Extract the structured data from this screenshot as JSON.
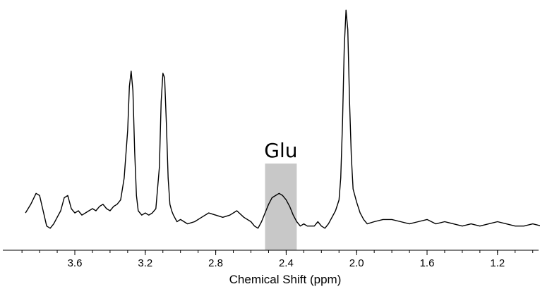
{
  "chart_data": {
    "type": "line",
    "title": "",
    "xlabel": "Chemical Shift (ppm)",
    "ylabel": "",
    "x_reversed": true,
    "xlim": [
      3.9,
      0.9
    ],
    "x_ticks": [
      3.6,
      3.2,
      2.8,
      2.4,
      2.0,
      1.6,
      1.2
    ],
    "x_tick_labels": [
      "3.6",
      "3.2",
      "2.8",
      "2.4",
      "2.0",
      "1.6",
      "1.2"
    ],
    "ylim": [
      -0.05,
      1.0
    ],
    "grid": false,
    "line_color": "#000000",
    "highlight": {
      "label": "Glu",
      "x_start": 2.52,
      "x_end": 2.34,
      "color": "#c8c8c8"
    },
    "series": [
      {
        "name": "",
        "x": [
          3.88,
          3.85,
          3.82,
          3.8,
          3.78,
          3.76,
          3.74,
          3.72,
          3.7,
          3.68,
          3.66,
          3.64,
          3.62,
          3.6,
          3.58,
          3.56,
          3.54,
          3.52,
          3.5,
          3.48,
          3.46,
          3.44,
          3.42,
          3.4,
          3.38,
          3.36,
          3.34,
          3.32,
          3.3,
          3.29,
          3.28,
          3.27,
          3.26,
          3.25,
          3.24,
          3.22,
          3.2,
          3.18,
          3.16,
          3.14,
          3.12,
          3.11,
          3.1,
          3.09,
          3.08,
          3.07,
          3.06,
          3.05,
          3.04,
          3.02,
          3.0,
          2.96,
          2.92,
          2.88,
          2.84,
          2.8,
          2.76,
          2.72,
          2.68,
          2.64,
          2.6,
          2.58,
          2.56,
          2.54,
          2.52,
          2.5,
          2.48,
          2.46,
          2.44,
          2.42,
          2.4,
          2.38,
          2.36,
          2.34,
          2.32,
          2.3,
          2.28,
          2.26,
          2.24,
          2.22,
          2.2,
          2.18,
          2.16,
          2.14,
          2.12,
          2.1,
          2.09,
          2.08,
          2.07,
          2.06,
          2.05,
          2.04,
          2.03,
          2.02,
          2.0,
          1.98,
          1.96,
          1.94,
          1.9,
          1.85,
          1.8,
          1.75,
          1.7,
          1.65,
          1.6,
          1.55,
          1.5,
          1.45,
          1.4,
          1.35,
          1.3,
          1.25,
          1.2,
          1.15,
          1.1,
          1.05,
          1.0,
          0.95,
          0.92
        ],
        "y": [
          0.04,
          0.08,
          0.13,
          0.12,
          0.05,
          -0.02,
          -0.03,
          -0.01,
          0.02,
          0.05,
          0.11,
          0.12,
          0.06,
          0.04,
          0.05,
          0.03,
          0.04,
          0.05,
          0.06,
          0.05,
          0.07,
          0.08,
          0.06,
          0.05,
          0.07,
          0.08,
          0.1,
          0.2,
          0.42,
          0.62,
          0.69,
          0.6,
          0.32,
          0.12,
          0.05,
          0.03,
          0.04,
          0.03,
          0.04,
          0.06,
          0.25,
          0.55,
          0.68,
          0.66,
          0.45,
          0.2,
          0.08,
          0.05,
          0.03,
          0.0,
          0.01,
          -0.01,
          0.0,
          0.02,
          0.04,
          0.03,
          0.02,
          0.03,
          0.05,
          0.02,
          0.0,
          -0.02,
          -0.03,
          0.0,
          0.04,
          0.08,
          0.11,
          0.12,
          0.13,
          0.12,
          0.1,
          0.07,
          0.03,
          0.0,
          -0.02,
          -0.01,
          -0.02,
          -0.02,
          -0.02,
          0.0,
          -0.02,
          -0.03,
          -0.01,
          0.02,
          0.05,
          0.1,
          0.2,
          0.45,
          0.8,
          0.97,
          0.88,
          0.55,
          0.3,
          0.15,
          0.09,
          0.04,
          0.01,
          -0.01,
          0.0,
          0.01,
          0.01,
          0.0,
          -0.01,
          0.0,
          0.01,
          -0.01,
          0.0,
          -0.01,
          -0.02,
          -0.01,
          -0.02,
          -0.01,
          0.0,
          -0.01,
          -0.02,
          -0.02,
          -0.01,
          -0.02,
          -0.02
        ]
      }
    ]
  }
}
